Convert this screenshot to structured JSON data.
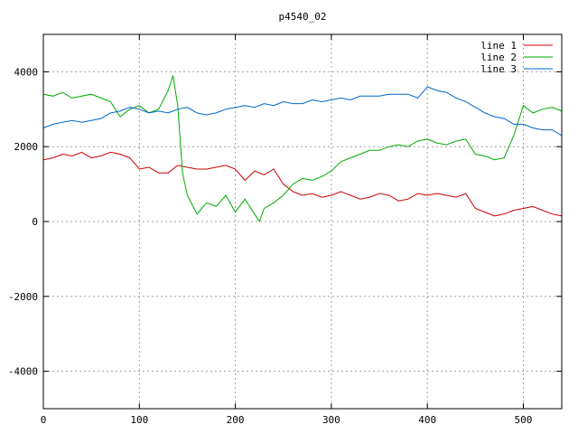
{
  "chart_data": {
    "type": "line",
    "title": "p4540_02",
    "xlabel": "",
    "ylabel": "",
    "xlim": [
      0,
      540
    ],
    "ylim": [
      -5000,
      5000
    ],
    "xticks": [
      0,
      100,
      200,
      300,
      400,
      500
    ],
    "yticks": [
      -4000,
      -2000,
      0,
      2000,
      4000
    ],
    "grid": true,
    "legend_position": "top-right",
    "series": [
      {
        "name": "line 1",
        "color": "#cc0000",
        "x": [
          0,
          10,
          20,
          30,
          40,
          50,
          60,
          70,
          80,
          90,
          100,
          110,
          120,
          130,
          140,
          150,
          160,
          170,
          180,
          190,
          200,
          210,
          220,
          230,
          240,
          250,
          260,
          270,
          280,
          290,
          300,
          310,
          320,
          330,
          340,
          350,
          360,
          370,
          380,
          390,
          400,
          410,
          420,
          430,
          440,
          450,
          460,
          470,
          480,
          490,
          500,
          510,
          520,
          530,
          540
        ],
        "y": [
          1650,
          1700,
          1800,
          1750,
          1850,
          1700,
          1750,
          1850,
          1800,
          1700,
          1400,
          1450,
          1300,
          1300,
          1500,
          1450,
          1400,
          1400,
          1450,
          1500,
          1400,
          1100,
          1350,
          1250,
          1400,
          1000,
          800,
          700,
          750,
          650,
          700,
          800,
          700,
          600,
          650,
          750,
          700,
          550,
          600,
          750,
          700,
          750,
          700,
          650,
          750,
          350,
          250,
          150,
          200,
          300,
          350,
          400,
          300,
          200,
          150
        ]
      },
      {
        "name": "line 2",
        "color": "#00aa00",
        "x": [
          0,
          10,
          20,
          30,
          40,
          50,
          60,
          70,
          80,
          90,
          100,
          110,
          120,
          130,
          135,
          140,
          145,
          150,
          160,
          170,
          180,
          190,
          200,
          210,
          220,
          225,
          230,
          240,
          250,
          260,
          270,
          280,
          290,
          300,
          310,
          320,
          330,
          340,
          350,
          360,
          370,
          380,
          390,
          400,
          410,
          420,
          430,
          440,
          450,
          460,
          470,
          480,
          490,
          500,
          510,
          520,
          530,
          540
        ],
        "y": [
          3400,
          3350,
          3450,
          3300,
          3350,
          3400,
          3300,
          3200,
          2800,
          3000,
          3100,
          2900,
          3000,
          3500,
          3900,
          3100,
          1300,
          700,
          200,
          500,
          400,
          700,
          250,
          600,
          200,
          0,
          350,
          500,
          700,
          1000,
          1150,
          1100,
          1200,
          1350,
          1600,
          1700,
          1800,
          1900,
          1900,
          2000,
          2050,
          2000,
          2150,
          2200,
          2100,
          2050,
          2150,
          2200,
          1800,
          1750,
          1650,
          1700,
          2300,
          3100,
          2900,
          3000,
          3050,
          2950
        ]
      },
      {
        "name": "line 3",
        "color": "#0066cc",
        "x": [
          0,
          10,
          20,
          30,
          40,
          50,
          60,
          70,
          80,
          90,
          100,
          110,
          120,
          130,
          140,
          150,
          160,
          170,
          180,
          190,
          200,
          210,
          220,
          230,
          240,
          250,
          260,
          270,
          280,
          290,
          300,
          310,
          320,
          330,
          340,
          350,
          360,
          370,
          380,
          390,
          400,
          410,
          420,
          430,
          440,
          450,
          460,
          470,
          480,
          490,
          500,
          510,
          520,
          530,
          540
        ],
        "y": [
          2500,
          2600,
          2650,
          2700,
          2650,
          2700,
          2750,
          2900,
          2950,
          3050,
          3000,
          2900,
          2950,
          2900,
          3000,
          3050,
          2900,
          2850,
          2900,
          3000,
          3050,
          3100,
          3050,
          3150,
          3100,
          3200,
          3150,
          3150,
          3250,
          3200,
          3250,
          3300,
          3250,
          3350,
          3350,
          3350,
          3400,
          3400,
          3400,
          3300,
          3600,
          3500,
          3450,
          3300,
          3200,
          3050,
          2900,
          2800,
          2750,
          2600,
          2600,
          2500,
          2450,
          2450,
          2300
        ]
      }
    ]
  }
}
